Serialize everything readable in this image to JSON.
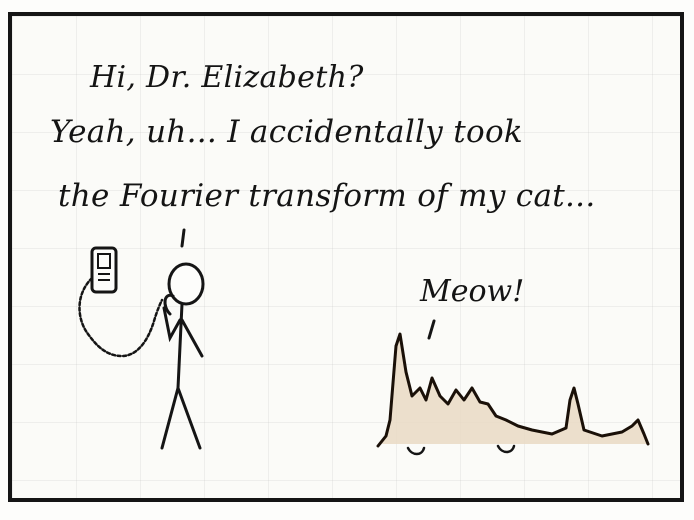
{
  "caption": {
    "line1": "Hi, Dr. Elizabeth?",
    "line2": "Yeah, uh... I accidentally took",
    "line3": "the Fourier transform of my cat..."
  },
  "sound_label": "Meow!"
}
